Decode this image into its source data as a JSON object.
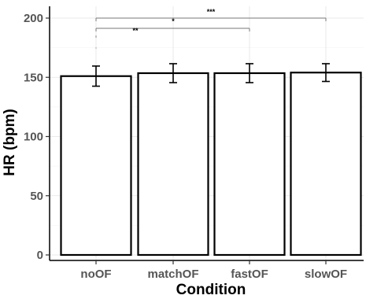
{
  "chart_data": {
    "type": "bar",
    "xlabel": "Condition",
    "ylabel": "HR (bpm)",
    "categories": [
      "noOF",
      "matchOF",
      "fastOF",
      "slowOF"
    ],
    "values": [
      151,
      153.5,
      153.5,
      154
    ],
    "error": [
      8.5,
      8,
      8,
      7.5
    ],
    "ylim": [
      0,
      205
    ],
    "yticks": [
      0,
      50,
      100,
      150,
      200
    ],
    "grid": true,
    "bar_fill": "#ffffff",
    "bar_stroke": "#000000",
    "significance": [
      {
        "from": "noOF",
        "to": "fastOF",
        "label": "**",
        "y": 191
      },
      {
        "from": "noOF",
        "to": "fastOF",
        "label": "*",
        "y": 191
      },
      {
        "from": "noOF",
        "to": "slowOF",
        "label": "***",
        "y": 200
      }
    ]
  }
}
